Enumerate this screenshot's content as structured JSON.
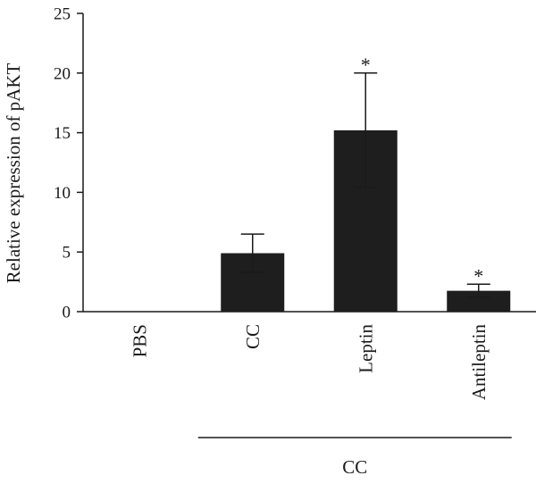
{
  "chart_data": {
    "type": "bar",
    "categories": [
      "PBS",
      "CC",
      "Leptin",
      "Antileptin"
    ],
    "values": [
      0,
      4.9,
      15.2,
      1.75
    ],
    "errors": [
      0,
      1.6,
      4.8,
      0.55
    ],
    "significance": [
      "",
      "",
      "*",
      "*"
    ],
    "ylabel": "Relative expression of pAKT",
    "xlabel": "",
    "ylim": [
      0,
      25
    ],
    "yticks": [
      0,
      5,
      10,
      15,
      20,
      25
    ],
    "group_bracket": {
      "label": "CC",
      "spans": [
        "CC",
        "Antileptin"
      ]
    },
    "bar_color": "#1e1e1e",
    "grid": false,
    "legend": "none"
  }
}
